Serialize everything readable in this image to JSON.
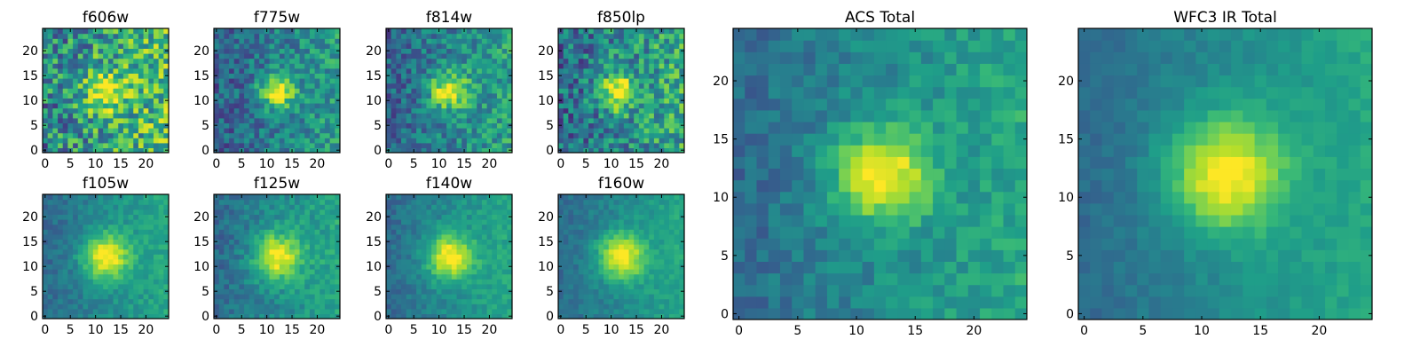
{
  "figure": {
    "colormap": "viridis",
    "colormap_stops": [
      "#440154",
      "#482878",
      "#3e4989",
      "#31688e",
      "#26828e",
      "#1f9e89",
      "#35b779",
      "#6ece58",
      "#b5de2b",
      "#fde725"
    ]
  },
  "chart_data": [
    {
      "type": "heatmap",
      "title": "f606w",
      "grid": [
        25,
        25
      ],
      "xticks": [
        0,
        5,
        10,
        15,
        20
      ],
      "yticks": [
        0,
        5,
        10,
        15,
        20
      ],
      "xlim": [
        -0.5,
        24.5
      ],
      "ylim": [
        -0.5,
        24.5
      ],
      "source_center": [
        12,
        12
      ],
      "source_width": 2.6,
      "background_level": 0.55,
      "noise_level": 0.3,
      "notes_visible": "noisy, faint compact source"
    },
    {
      "type": "heatmap",
      "title": "f775w",
      "grid": [
        25,
        25
      ],
      "xticks": [
        0,
        5,
        10,
        15,
        20
      ],
      "yticks": [
        0,
        5,
        10,
        15,
        20
      ],
      "xlim": [
        -0.5,
        24.5
      ],
      "ylim": [
        -0.5,
        24.5
      ],
      "source_center": [
        12,
        12
      ],
      "source_width": 2.4,
      "background_level": 0.4,
      "noise_level": 0.18
    },
    {
      "type": "heatmap",
      "title": "f814w",
      "grid": [
        25,
        25
      ],
      "xticks": [
        0,
        5,
        10,
        15,
        20
      ],
      "yticks": [
        0,
        5,
        10,
        15,
        20
      ],
      "xlim": [
        -0.5,
        24.5
      ],
      "ylim": [
        -0.5,
        24.5
      ],
      "source_center": [
        12,
        12
      ],
      "source_width": 2.6,
      "background_level": 0.42,
      "noise_level": 0.18
    },
    {
      "type": "heatmap",
      "title": "f850lp",
      "grid": [
        25,
        25
      ],
      "xticks": [
        0,
        5,
        10,
        15,
        20
      ],
      "yticks": [
        0,
        5,
        10,
        15,
        20
      ],
      "xlim": [
        -0.5,
        24.5
      ],
      "ylim": [
        -0.5,
        24.5
      ],
      "source_center": [
        11,
        12
      ],
      "source_width": 2.6,
      "background_level": 0.45,
      "noise_level": 0.25
    },
    {
      "type": "heatmap",
      "title": "f105w",
      "grid": [
        25,
        25
      ],
      "xticks": [
        0,
        5,
        10,
        15,
        20
      ],
      "yticks": [
        0,
        5,
        10,
        15,
        20
      ],
      "xlim": [
        -0.5,
        24.5
      ],
      "ylim": [
        -0.5,
        24.5
      ],
      "source_center": [
        12,
        12
      ],
      "source_width": 3.2,
      "background_level": 0.45,
      "noise_level": 0.08
    },
    {
      "type": "heatmap",
      "title": "f125w",
      "grid": [
        25,
        25
      ],
      "xticks": [
        0,
        5,
        10,
        15,
        20
      ],
      "yticks": [
        0,
        5,
        10,
        15,
        20
      ],
      "xlim": [
        -0.5,
        24.5
      ],
      "ylim": [
        -0.5,
        24.5
      ],
      "source_center": [
        12,
        12
      ],
      "source_width": 3.2,
      "background_level": 0.45,
      "noise_level": 0.1
    },
    {
      "type": "heatmap",
      "title": "f140w",
      "grid": [
        25,
        25
      ],
      "xticks": [
        0,
        5,
        10,
        15,
        20
      ],
      "yticks": [
        0,
        5,
        10,
        15,
        20
      ],
      "xlim": [
        -0.5,
        24.5
      ],
      "ylim": [
        -0.5,
        24.5
      ],
      "source_center": [
        12,
        12
      ],
      "source_width": 3.2,
      "background_level": 0.45,
      "noise_level": 0.08
    },
    {
      "type": "heatmap",
      "title": "f160w",
      "grid": [
        25,
        25
      ],
      "xticks": [
        0,
        5,
        10,
        15,
        20
      ],
      "yticks": [
        0,
        5,
        10,
        15,
        20
      ],
      "xlim": [
        -0.5,
        24.5
      ],
      "ylim": [
        -0.5,
        24.5
      ],
      "source_center": [
        12,
        12
      ],
      "source_width": 3.2,
      "background_level": 0.45,
      "noise_level": 0.07
    },
    {
      "type": "heatmap",
      "title": "ACS Total",
      "grid": [
        25,
        25
      ],
      "xticks": [
        0,
        5,
        10,
        15,
        20
      ],
      "yticks": [
        0,
        5,
        10,
        15,
        20
      ],
      "xlim": [
        -0.5,
        24.5
      ],
      "ylim": [
        -0.5,
        24.5
      ],
      "source_center": [
        12,
        12
      ],
      "source_width": 2.8,
      "background_level": 0.45,
      "noise_level": 0.1
    },
    {
      "type": "heatmap",
      "title": "WFC3 IR Total",
      "grid": [
        25,
        25
      ],
      "xticks": [
        0,
        5,
        10,
        15,
        20
      ],
      "yticks": [
        0,
        5,
        10,
        15,
        20
      ],
      "xlim": [
        -0.5,
        24.5
      ],
      "ylim": [
        -0.5,
        24.5
      ],
      "source_center": [
        12,
        12
      ],
      "source_width": 3.4,
      "background_level": 0.45,
      "noise_level": 0.05
    }
  ]
}
